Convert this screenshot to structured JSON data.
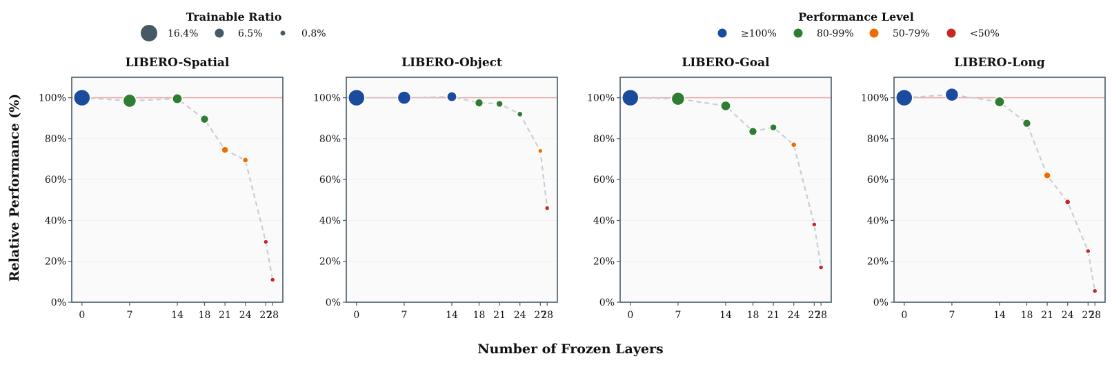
{
  "xlabel": "Number of Frozen Layers",
  "ylabel": "Relative Performance (%)",
  "legends": {
    "size": {
      "title": "Trainable Ratio",
      "items": [
        {
          "label": "16.4%",
          "ratio": 16.4
        },
        {
          "label": "6.5%",
          "ratio": 6.5
        },
        {
          "label": "0.8%",
          "ratio": 0.8
        }
      ]
    },
    "color": {
      "title": "Performance Level",
      "items": [
        {
          "label": "≥100%",
          "color": "#1a4b9c"
        },
        {
          "label": "80-99%",
          "color": "#2e7d32"
        },
        {
          "label": "50-79%",
          "color": "#ef6c00"
        },
        {
          "label": "<50%",
          "color": "#c62828"
        }
      ]
    }
  },
  "colors": {
    "ge100": "#1a4b9c",
    "p80": "#2e7d32",
    "p50": "#ef6c00",
    "lt50": "#c62828",
    "line": "#c9ced4",
    "reference": "#e8a7a7",
    "frame": "#455a64",
    "panel_bg": "#fafafa"
  },
  "chart_data": [
    {
      "type": "scatter",
      "title": "LIBERO-Spatial",
      "x": [
        0,
        7,
        14,
        18,
        21,
        24,
        27,
        28
      ],
      "y": [
        100,
        98.5,
        99.5,
        89.5,
        74.5,
        69.5,
        29.5,
        11
      ],
      "trainable_ratio": [
        16.4,
        11.9,
        7.5,
        5.3,
        3.6,
        1.9,
        0.8,
        0.8
      ],
      "xticks": [
        0,
        7,
        14,
        18,
        21,
        24,
        27,
        28
      ],
      "yticks": [
        0,
        20,
        40,
        60,
        80,
        100
      ],
      "ytick_labels": [
        "0%",
        "20%",
        "40%",
        "60%",
        "80%",
        "100%"
      ],
      "xlim": [
        -1.5,
        29.5
      ],
      "ylim": [
        0,
        110
      ],
      "reference_line": 100
    },
    {
      "type": "scatter",
      "title": "LIBERO-Object",
      "x": [
        0,
        7,
        14,
        18,
        21,
        24,
        27,
        28
      ],
      "y": [
        100,
        100,
        100.5,
        97.5,
        97,
        92,
        74,
        46
      ],
      "trainable_ratio": [
        16.4,
        11.9,
        7.5,
        5.3,
        3.6,
        1.9,
        0.8,
        0.8
      ],
      "xticks": [
        0,
        7,
        14,
        18,
        21,
        24,
        27,
        28
      ],
      "yticks": [
        0,
        20,
        40,
        60,
        80,
        100
      ],
      "ytick_labels": [
        "0%",
        "20%",
        "40%",
        "60%",
        "80%",
        "100%"
      ],
      "xlim": [
        -1.5,
        29.5
      ],
      "ylim": [
        0,
        110
      ],
      "reference_line": 100
    },
    {
      "type": "scatter",
      "title": "LIBERO-Goal",
      "x": [
        0,
        7,
        14,
        18,
        21,
        24,
        27,
        28
      ],
      "y": [
        100,
        99.5,
        96,
        83.5,
        85.5,
        77,
        38,
        17
      ],
      "trainable_ratio": [
        16.4,
        11.9,
        7.5,
        5.3,
        3.6,
        1.9,
        0.8,
        0.8
      ],
      "xticks": [
        0,
        7,
        14,
        18,
        21,
        24,
        27,
        28
      ],
      "yticks": [
        0,
        20,
        40,
        60,
        80,
        100
      ],
      "ytick_labels": [
        "0%",
        "20%",
        "40%",
        "60%",
        "80%",
        "100%"
      ],
      "xlim": [
        -1.5,
        29.5
      ],
      "ylim": [
        0,
        110
      ],
      "reference_line": 100
    },
    {
      "type": "scatter",
      "title": "LIBERO-Long",
      "x": [
        0,
        7,
        14,
        18,
        21,
        24,
        27,
        28
      ],
      "y": [
        100,
        101.5,
        98,
        87.5,
        62,
        49,
        25,
        5.5
      ],
      "trainable_ratio": [
        16.4,
        11.9,
        7.5,
        5.3,
        3.6,
        1.9,
        0.8,
        0.8
      ],
      "xticks": [
        0,
        7,
        14,
        18,
        21,
        24,
        27,
        28
      ],
      "yticks": [
        0,
        20,
        40,
        60,
        80,
        100
      ],
      "ytick_labels": [
        "0%",
        "20%",
        "40%",
        "60%",
        "80%",
        "100%"
      ],
      "xlim": [
        -1.5,
        29.5
      ],
      "ylim": [
        0,
        110
      ],
      "reference_line": 100
    }
  ]
}
